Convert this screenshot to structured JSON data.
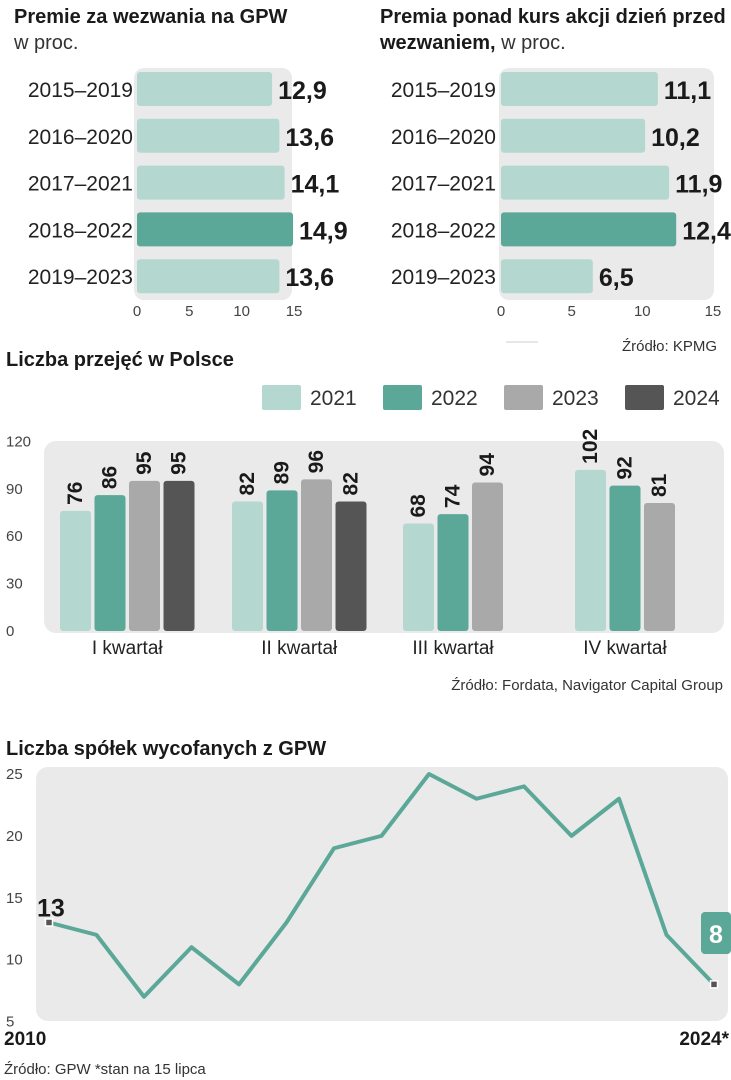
{
  "colors": {
    "light": "#b4d8d0",
    "teal": "#5ba898",
    "grey": "#a9a9a9",
    "dark": "#555555",
    "panel": "#eaeaea"
  },
  "chart_data": [
    {
      "type": "bar",
      "orientation": "horizontal",
      "title": "Premie za wezwania na GPW",
      "subtitle": "w proc.",
      "categories": [
        "2015–2019",
        "2016–2020",
        "2017–2021",
        "2018–2022",
        "2019–2023"
      ],
      "values": [
        12.9,
        13.6,
        14.1,
        14.9,
        13.6
      ],
      "labels": [
        "12,9",
        "13,6",
        "14,1",
        "14,9",
        "13,6"
      ],
      "highlight_index": 3,
      "xlim": [
        0,
        15
      ],
      "xticks": [
        "0",
        "5",
        "10",
        "15"
      ]
    },
    {
      "type": "bar",
      "orientation": "horizontal",
      "title_line1": "Premia ponad kurs akcji dzień przed",
      "title_line2_bold": "wezwaniem,",
      "title_line2_rest": " w proc.",
      "categories": [
        "2015–2019",
        "2016–2020",
        "2017–2021",
        "2018–2022",
        "2019–2023"
      ],
      "values": [
        11.1,
        10.2,
        11.9,
        12.4,
        6.5
      ],
      "labels": [
        "11,1",
        "10,2",
        "11,9",
        "12,4",
        "6,5"
      ],
      "highlight_index": 3,
      "xlim": [
        0,
        15
      ],
      "xticks": [
        "0",
        "5",
        "10",
        "15"
      ],
      "source": "Źródło: KPMG"
    },
    {
      "type": "bar",
      "title": "Liczba przejęć w Polsce",
      "categories": [
        "I kwartał",
        "II kwartał",
        "III kwartał",
        "IV kwartał"
      ],
      "series": [
        {
          "name": "2021",
          "values": [
            76,
            82,
            68,
            102
          ]
        },
        {
          "name": "2022",
          "values": [
            86,
            89,
            74,
            92
          ]
        },
        {
          "name": "2023",
          "values": [
            95,
            96,
            94,
            81
          ]
        },
        {
          "name": "2024",
          "values": [
            95,
            82,
            null,
            null
          ]
        }
      ],
      "ylim": [
        0,
        120
      ],
      "yticks": [
        "0",
        "30",
        "60",
        "90",
        "120"
      ],
      "legend": "top-right",
      "source": "Źródło: Fordata, Navigator Capital Group"
    },
    {
      "type": "line",
      "title": "Liczba spółek wycofanych z GPW",
      "x": [
        2010,
        2011,
        2012,
        2013,
        2014,
        2015,
        2016,
        2017,
        2018,
        2019,
        2020,
        2021,
        2022,
        2023,
        2024
      ],
      "values": [
        13,
        12,
        7,
        11,
        8,
        13,
        19,
        20,
        25,
        23,
        24,
        20,
        23,
        12,
        8
      ],
      "ylim": [
        5,
        25
      ],
      "yticks": [
        "5",
        "10",
        "15",
        "20",
        "25"
      ],
      "x_start_label": "2010",
      "x_end_label": "2024*",
      "first_point_label": "13",
      "last_point_label": "8",
      "source": "Źródło: GPW *stan na 15 lipca"
    }
  ]
}
